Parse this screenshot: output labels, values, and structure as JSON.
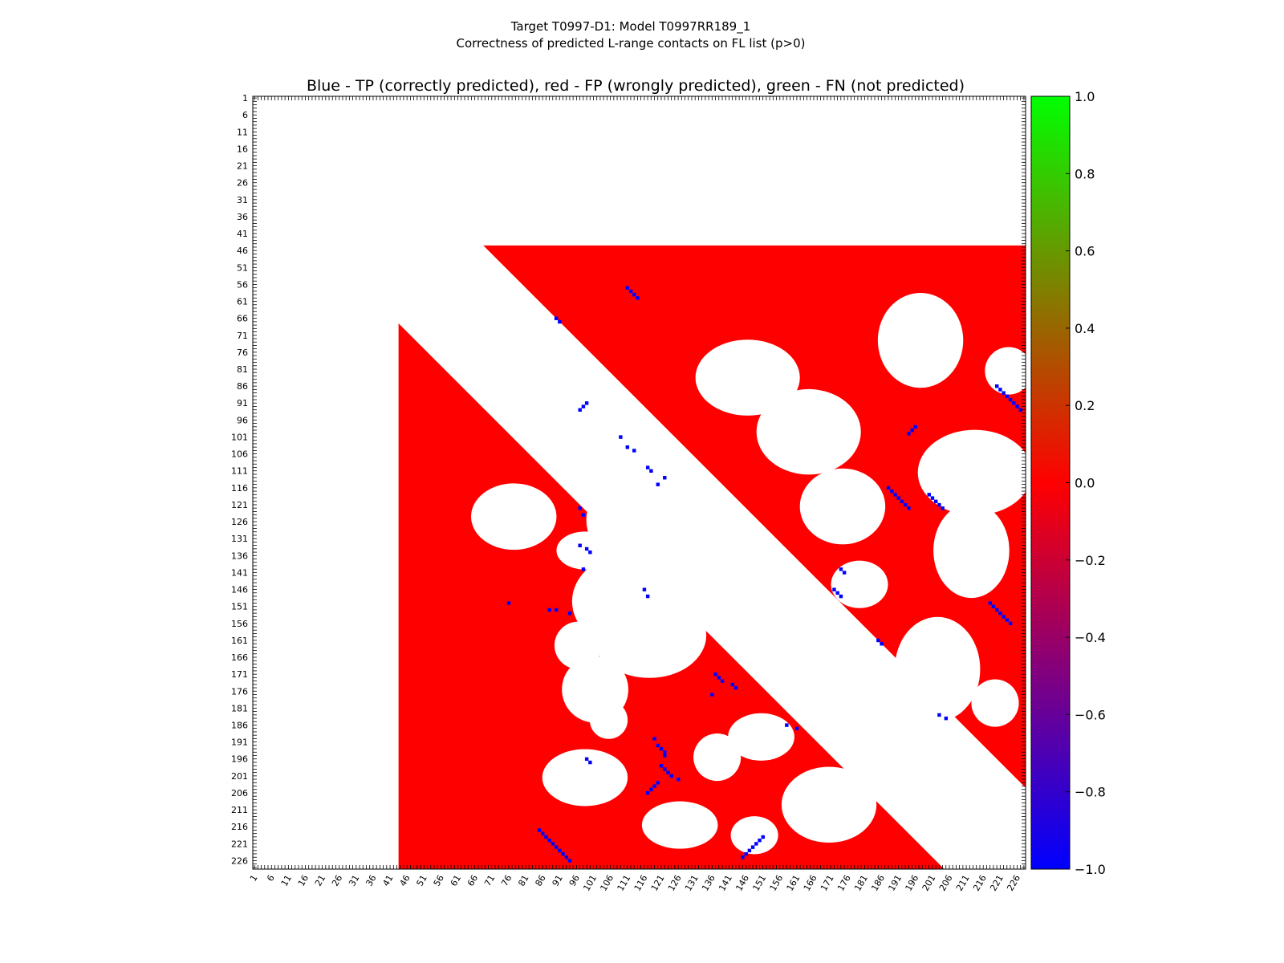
{
  "figure": {
    "suptitle_line1": "Target T0997-D1: Model T0997RR189_1",
    "suptitle_line2": "Correctness of predicted L-range contacts on FL list (p>0)"
  },
  "chart_data": {
    "type": "heatmap",
    "title": "Blue - TP (correctly predicted), red - FP (wrongly predicted), green - FN (not predicted)",
    "residue_range": [
      1,
      228
    ],
    "tick_labels": [
      "1",
      "6",
      "11",
      "16",
      "21",
      "26",
      "31",
      "36",
      "41",
      "46",
      "51",
      "56",
      "61",
      "66",
      "71",
      "76",
      "81",
      "86",
      "91",
      "96",
      "101",
      "106",
      "111",
      "116",
      "121",
      "126",
      "131",
      "136",
      "141",
      "146",
      "151",
      "156",
      "161",
      "166",
      "171",
      "176",
      "181",
      "186",
      "191",
      "196",
      "201",
      "206",
      "211",
      "216",
      "221",
      "226"
    ],
    "colorbar": {
      "range": [
        -1.0,
        1.0
      ],
      "ticks": [
        "1.0",
        "0.8",
        "0.6",
        "0.4",
        "0.2",
        "0.0",
        "−0.2",
        "−0.4",
        "−0.6",
        "−0.8",
        "−1.0"
      ],
      "colors": {
        "low": "#0000ff",
        "mid": "#ff0000",
        "high": "#00ff00"
      }
    },
    "regions": {
      "upper_triangle": {
        "row_start": 45,
        "col_end": 228,
        "min_separation": 24,
        "color": "#ff0000"
      },
      "lower_triangle": {
        "col_start": 44,
        "row_end": 228,
        "min_separation": 24,
        "color": "#ff0000"
      }
    },
    "tp_contacts_approx": [
      [
        91,
        99
      ],
      [
        92,
        98
      ],
      [
        93,
        97
      ],
      [
        101,
        109
      ],
      [
        104,
        111
      ],
      [
        105,
        113
      ],
      [
        110,
        117
      ],
      [
        111,
        118
      ],
      [
        113,
        122
      ],
      [
        115,
        120
      ],
      [
        122,
        97
      ],
      [
        124,
        98
      ],
      [
        133,
        97
      ],
      [
        134,
        99
      ],
      [
        135,
        100
      ],
      [
        140,
        98
      ],
      [
        146,
        116
      ],
      [
        148,
        117
      ],
      [
        150,
        76
      ],
      [
        152,
        88
      ],
      [
        152,
        90
      ],
      [
        153,
        94
      ],
      [
        171,
        137
      ],
      [
        172,
        138
      ],
      [
        173,
        139
      ],
      [
        174,
        142
      ],
      [
        175,
        143
      ],
      [
        177,
        136
      ],
      [
        186,
        158
      ],
      [
        187,
        161
      ],
      [
        190,
        119
      ],
      [
        192,
        120
      ],
      [
        193,
        121
      ],
      [
        194,
        122
      ],
      [
        195,
        122
      ],
      [
        196,
        99
      ],
      [
        197,
        100
      ],
      [
        198,
        121
      ],
      [
        199,
        122
      ],
      [
        200,
        123
      ],
      [
        201,
        124
      ],
      [
        202,
        126
      ],
      [
        203,
        120
      ],
      [
        204,
        119
      ],
      [
        205,
        118
      ],
      [
        206,
        117
      ],
      [
        217,
        85
      ],
      [
        218,
        86
      ],
      [
        219,
        87
      ],
      [
        220,
        88
      ],
      [
        221,
        89
      ],
      [
        222,
        90
      ],
      [
        223,
        91
      ],
      [
        224,
        92
      ],
      [
        225,
        93
      ],
      [
        226,
        94
      ],
      [
        219,
        151
      ],
      [
        220,
        150
      ],
      [
        221,
        149
      ],
      [
        222,
        148
      ],
      [
        223,
        147
      ],
      [
        224,
        146
      ],
      [
        225,
        145
      ],
      [
        57,
        111
      ],
      [
        58,
        112
      ],
      [
        59,
        113
      ],
      [
        60,
        114
      ],
      [
        66,
        90
      ],
      [
        67,
        91
      ],
      [
        86,
        220
      ],
      [
        87,
        221
      ],
      [
        88,
        222
      ],
      [
        89,
        223
      ],
      [
        90,
        224
      ],
      [
        91,
        225
      ],
      [
        92,
        226
      ],
      [
        93,
        227
      ],
      [
        98,
        196
      ],
      [
        99,
        195
      ],
      [
        100,
        194
      ],
      [
        116,
        188
      ],
      [
        117,
        189
      ],
      [
        118,
        190
      ],
      [
        119,
        191
      ],
      [
        120,
        192
      ],
      [
        121,
        193
      ],
      [
        122,
        194
      ],
      [
        118,
        200
      ],
      [
        119,
        201
      ],
      [
        120,
        202
      ],
      [
        121,
        203
      ],
      [
        122,
        204
      ],
      [
        140,
        174
      ],
      [
        141,
        175
      ],
      [
        146,
        172
      ],
      [
        147,
        173
      ],
      [
        148,
        174
      ],
      [
        150,
        218
      ],
      [
        151,
        219
      ],
      [
        152,
        220
      ],
      [
        153,
        221
      ],
      [
        154,
        222
      ],
      [
        155,
        223
      ],
      [
        156,
        224
      ],
      [
        161,
        185
      ],
      [
        162,
        186
      ],
      [
        183,
        203
      ],
      [
        184,
        205
      ]
    ]
  }
}
